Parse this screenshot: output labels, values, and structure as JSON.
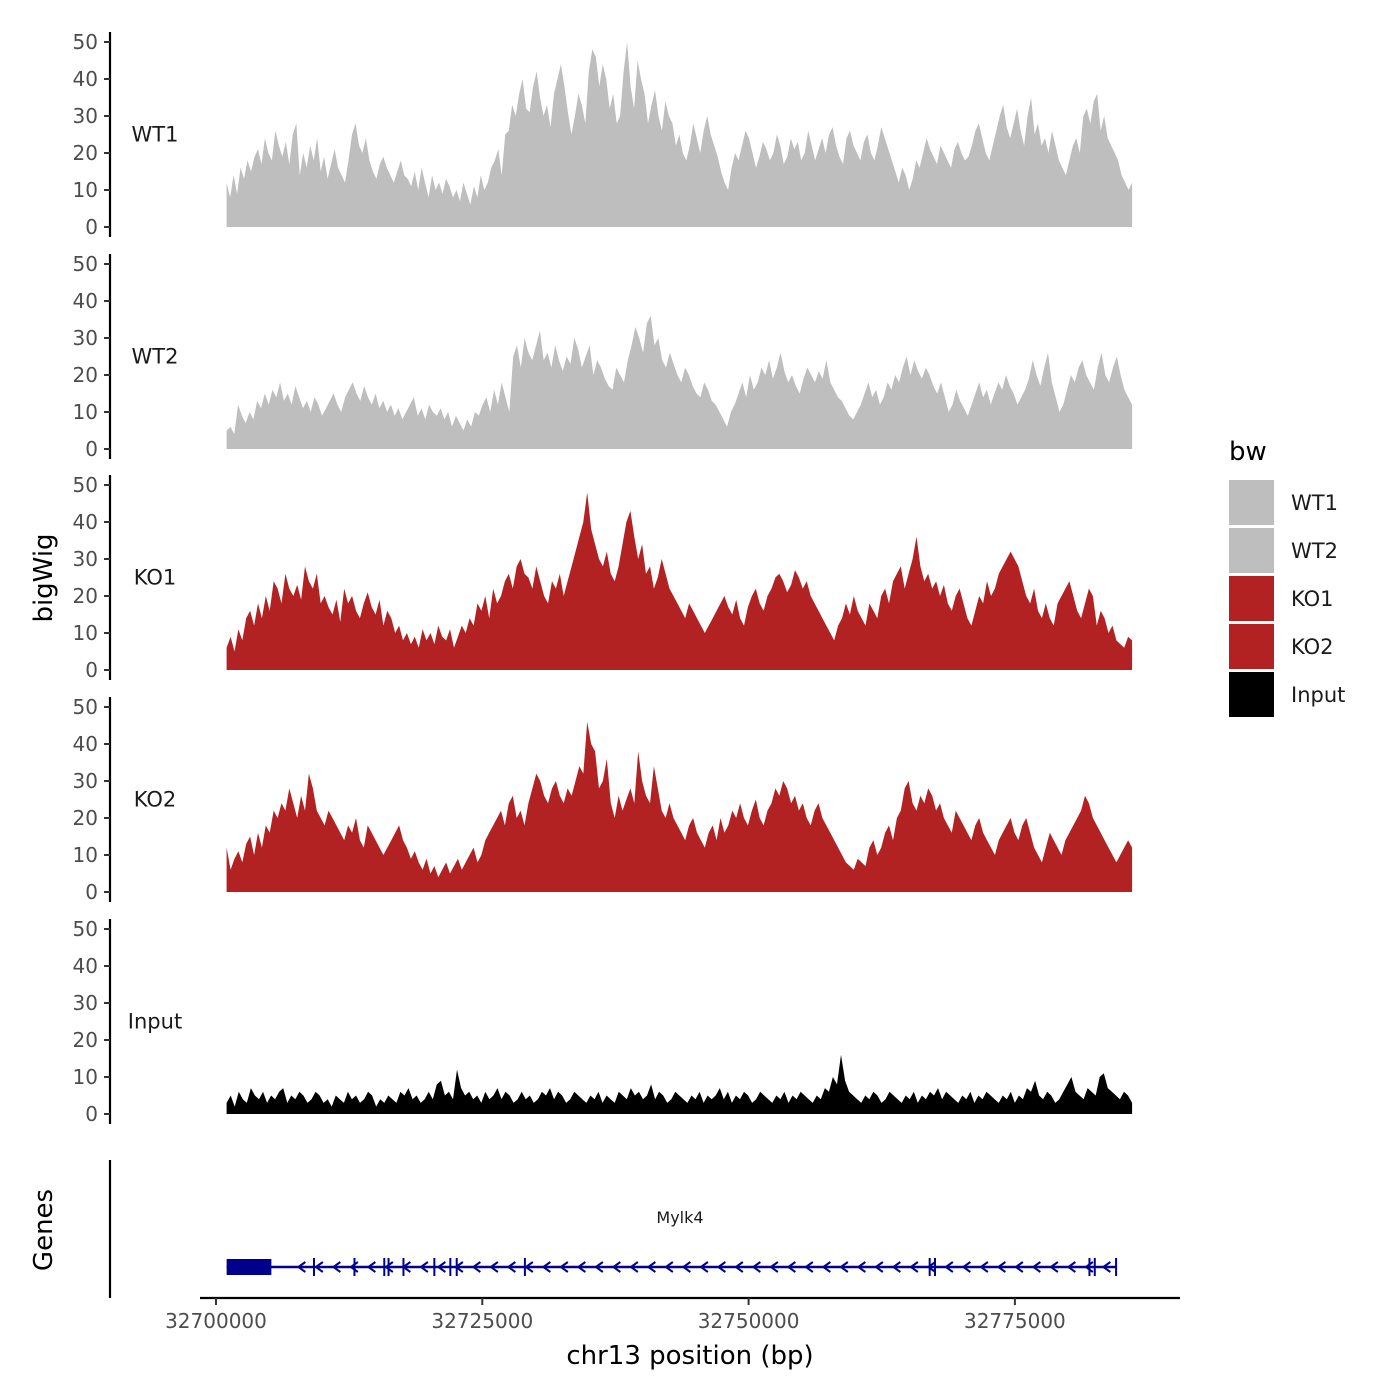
{
  "chart_data": {
    "type": "area",
    "ylabel": "bigWig",
    "genes_label": "Genes",
    "xlabel": "chr13 position (bp)",
    "chromosome": "chr13",
    "xlim": [
      32698500,
      32790500
    ],
    "data_range": [
      32701000,
      32786000
    ],
    "ylim": [
      0,
      52
    ],
    "yticks": [
      0,
      10,
      20,
      30,
      40,
      50
    ],
    "xticks": [
      32700000,
      32725000,
      32750000,
      32775000
    ],
    "xtick_labels": [
      "32700000",
      "32725000",
      "32750000",
      "32775000"
    ],
    "legend": {
      "title": "bw",
      "position": "right",
      "entries": [
        {
          "label": "WT1",
          "color": "#bebebe"
        },
        {
          "label": "WT2",
          "color": "#bebebe"
        },
        {
          "label": "KO1",
          "color": "#b22222"
        },
        {
          "label": "KO2",
          "color": "#b22222"
        },
        {
          "label": "Input",
          "color": "#000000"
        }
      ]
    },
    "series": [
      {
        "name": "WT1",
        "color": "#bebebe",
        "values": [
          12,
          8,
          14,
          9,
          16,
          13,
          18,
          15,
          19,
          21,
          17,
          24,
          20,
          18,
          26,
          22,
          19,
          23,
          17,
          25,
          28,
          14,
          20,
          16,
          22,
          18,
          24,
          15,
          19,
          13,
          17,
          21,
          16,
          14,
          12,
          18,
          25,
          28,
          22,
          20,
          24,
          18,
          15,
          13,
          17,
          19,
          16,
          14,
          12,
          15,
          18,
          14,
          13,
          11,
          15,
          10,
          16,
          12,
          8,
          14,
          10,
          12,
          9,
          13,
          11,
          8,
          10,
          7,
          12,
          9,
          6,
          11,
          8,
          14,
          10,
          12,
          16,
          18,
          21,
          14,
          25,
          26,
          33,
          30,
          36,
          40,
          32,
          31,
          38,
          42,
          35,
          30,
          33,
          27,
          36,
          40,
          44,
          38,
          31,
          25,
          30,
          36,
          33,
          28,
          42,
          48,
          46,
          38,
          44,
          40,
          32,
          36,
          28,
          30,
          42,
          50,
          38,
          32,
          45,
          40,
          36,
          28,
          33,
          37,
          30,
          26,
          34,
          30,
          28,
          22,
          25,
          20,
          18,
          22,
          28,
          24,
          20,
          26,
          30,
          25,
          22,
          19,
          15,
          12,
          10,
          16,
          20,
          18,
          22,
          26,
          24,
          20,
          16,
          19,
          23,
          21,
          18,
          20,
          25,
          22,
          17,
          19,
          24,
          21,
          23,
          18,
          20,
          26,
          22,
          18,
          21,
          24,
          20,
          25,
          27,
          22,
          19,
          17,
          24,
          26,
          22,
          20,
          18,
          23,
          25,
          20,
          18,
          22,
          27,
          24,
          21,
          18,
          15,
          12,
          16,
          14,
          10,
          13,
          18,
          16,
          20,
          24,
          21,
          19,
          17,
          22,
          20,
          18,
          16,
          21,
          23,
          20,
          18,
          19,
          22,
          26,
          28,
          24,
          20,
          18,
          22,
          26,
          30,
          33,
          27,
          24,
          28,
          32,
          26,
          22,
          30,
          35,
          25,
          28,
          22,
          24,
          20,
          26,
          22,
          18,
          16,
          14,
          18,
          22,
          24,
          20,
          30,
          32,
          28,
          34,
          36,
          26,
          30,
          24,
          22,
          20,
          18,
          14,
          12,
          10,
          12
        ]
      },
      {
        "name": "WT2",
        "color": "#bebebe",
        "values": [
          5,
          6,
          4,
          12,
          9,
          7,
          10,
          8,
          13,
          11,
          15,
          12,
          16,
          14,
          18,
          13,
          15,
          12,
          17,
          14,
          11,
          13,
          10,
          14,
          12,
          9,
          11,
          13,
          15,
          12,
          10,
          14,
          16,
          18,
          15,
          13,
          17,
          14,
          12,
          15,
          11,
          13,
          10,
          12,
          9,
          11,
          8,
          10,
          12,
          14,
          9,
          11,
          8,
          12,
          10,
          9,
          11,
          8,
          10,
          6,
          9,
          7,
          5,
          8,
          6,
          10,
          9,
          12,
          14,
          10,
          16,
          12,
          18,
          14,
          10,
          25,
          28,
          22,
          30,
          26,
          24,
          28,
          32,
          24,
          26,
          22,
          28,
          24,
          21,
          25,
          23,
          30,
          27,
          22,
          25,
          28,
          20,
          24,
          22,
          19,
          17,
          16,
          22,
          20,
          18,
          24,
          28,
          33,
          30,
          26,
          34,
          36,
          28,
          30,
          24,
          22,
          26,
          23,
          20,
          18,
          22,
          20,
          17,
          15,
          14,
          18,
          16,
          13,
          12,
          10,
          8,
          6,
          10,
          12,
          15,
          18,
          14,
          20,
          16,
          18,
          22,
          20,
          24,
          19,
          22,
          26,
          21,
          18,
          20,
          17,
          15,
          19,
          22,
          20,
          18,
          21,
          19,
          24,
          18,
          16,
          14,
          13,
          11,
          9,
          8,
          10,
          12,
          15,
          18,
          14,
          16,
          12,
          14,
          18,
          16,
          20,
          18,
          22,
          25,
          20,
          24,
          21,
          19,
          22,
          20,
          17,
          15,
          18,
          14,
          10,
          12,
          16,
          13,
          11,
          9,
          12,
          15,
          18,
          14,
          16,
          12,
          15,
          18,
          16,
          20,
          17,
          15,
          12,
          14,
          16,
          19,
          24,
          20,
          17,
          22,
          26,
          18,
          14,
          10,
          12,
          16,
          20,
          18,
          22,
          24,
          20,
          18,
          16,
          22,
          26,
          20,
          18,
          22,
          25,
          20,
          16,
          14,
          12
        ]
      },
      {
        "name": "KO1",
        "color": "#b22222",
        "values": [
          6,
          9,
          5,
          11,
          8,
          14,
          16,
          12,
          18,
          14,
          20,
          16,
          24,
          22,
          18,
          26,
          22,
          20,
          23,
          19,
          28,
          24,
          22,
          26,
          18,
          20,
          17,
          15,
          19,
          13,
          22,
          18,
          20,
          16,
          14,
          18,
          21,
          17,
          15,
          19,
          12,
          16,
          14,
          10,
          12,
          8,
          10,
          7,
          9,
          6,
          11,
          8,
          10,
          7,
          12,
          9,
          8,
          11,
          6,
          9,
          12,
          10,
          14,
          12,
          18,
          16,
          20,
          14,
          22,
          18,
          20,
          24,
          26,
          22,
          28,
          30,
          26,
          25,
          22,
          28,
          24,
          20,
          18,
          24,
          22,
          26,
          20,
          24,
          28,
          32,
          36,
          40,
          48,
          38,
          34,
          30,
          28,
          32,
          26,
          24,
          28,
          34,
          40,
          43,
          36,
          30,
          34,
          26,
          28,
          22,
          25,
          30,
          26,
          22,
          20,
          18,
          16,
          14,
          18,
          16,
          14,
          12,
          10,
          12,
          14,
          16,
          18,
          20,
          17,
          15,
          19,
          14,
          12,
          17,
          20,
          22,
          18,
          16,
          20,
          22,
          25,
          26,
          24,
          21,
          23,
          27,
          25,
          22,
          24,
          20,
          18,
          16,
          14,
          12,
          10,
          8,
          12,
          14,
          18,
          15,
          20,
          16,
          14,
          12,
          18,
          16,
          14,
          20,
          22,
          18,
          24,
          26,
          28,
          22,
          26,
          30,
          36,
          28,
          24,
          26,
          22,
          24,
          20,
          23,
          18,
          16,
          20,
          22,
          18,
          14,
          12,
          16,
          20,
          18,
          24,
          20,
          22,
          26,
          28,
          30,
          32,
          30,
          28,
          24,
          20,
          18,
          22,
          16,
          14,
          18,
          14,
          12,
          18,
          20,
          22,
          24,
          20,
          16,
          14,
          18,
          22,
          20,
          12,
          16,
          14,
          10,
          12,
          8,
          7,
          6,
          9,
          8
        ]
      },
      {
        "name": "KO2",
        "color": "#b22222",
        "values": [
          12,
          6,
          9,
          11,
          8,
          13,
          15,
          10,
          16,
          12,
          18,
          16,
          22,
          20,
          24,
          22,
          28,
          24,
          20,
          26,
          22,
          32,
          28,
          22,
          20,
          18,
          22,
          20,
          18,
          16,
          14,
          18,
          16,
          20,
          14,
          12,
          18,
          16,
          14,
          12,
          10,
          12,
          14,
          16,
          18,
          14,
          12,
          9,
          11,
          8,
          6,
          9,
          5,
          7,
          4,
          6,
          8,
          5,
          7,
          9,
          6,
          8,
          10,
          12,
          8,
          10,
          14,
          16,
          18,
          20,
          22,
          18,
          24,
          26,
          20,
          22,
          18,
          24,
          28,
          32,
          30,
          26,
          24,
          28,
          30,
          26,
          24,
          28,
          26,
          30,
          34,
          32,
          46,
          40,
          38,
          28,
          30,
          36,
          24,
          20,
          26,
          22,
          25,
          28,
          24,
          38,
          30,
          26,
          24,
          34,
          28,
          22,
          20,
          24,
          20,
          18,
          16,
          14,
          18,
          20,
          16,
          14,
          12,
          16,
          18,
          14,
          20,
          16,
          18,
          22,
          20,
          24,
          20,
          18,
          22,
          25,
          20,
          18,
          22,
          24,
          28,
          26,
          30,
          28,
          24,
          26,
          22,
          24,
          20,
          18,
          22,
          24,
          20,
          18,
          16,
          14,
          12,
          10,
          8,
          7,
          6,
          9,
          8,
          7,
          12,
          14,
          10,
          12,
          16,
          18,
          14,
          20,
          22,
          28,
          30,
          24,
          22,
          26,
          24,
          28,
          26,
          22,
          24,
          20,
          18,
          16,
          22,
          20,
          18,
          16,
          14,
          18,
          20,
          16,
          14,
          12,
          10,
          14,
          16,
          18,
          20,
          16,
          14,
          18,
          20,
          16,
          12,
          10,
          8,
          12,
          16,
          14,
          12,
          10,
          14,
          16,
          18,
          20,
          22,
          26,
          24,
          20,
          18,
          16,
          14,
          12,
          10,
          8,
          10,
          12,
          14,
          12
        ]
      },
      {
        "name": "Input",
        "color": "#000000",
        "values": [
          3,
          5,
          2,
          6,
          4,
          3,
          7,
          5,
          4,
          6,
          3,
          5,
          4,
          6,
          7,
          3,
          5,
          4,
          6,
          5,
          3,
          4,
          6,
          5,
          3,
          4,
          2,
          5,
          4,
          3,
          6,
          4,
          5,
          3,
          4,
          6,
          5,
          2,
          4,
          3,
          5,
          4,
          3,
          6,
          5,
          7,
          4,
          5,
          3,
          4,
          6,
          4,
          8,
          9,
          5,
          6,
          4,
          12,
          7,
          5,
          6,
          4,
          5,
          3,
          6,
          4,
          5,
          7,
          4,
          6,
          5,
          3,
          4,
          6,
          4,
          5,
          3,
          4,
          6,
          5,
          7,
          4,
          6,
          5,
          3,
          4,
          6,
          5,
          4,
          3,
          5,
          4,
          6,
          3,
          5,
          4,
          3,
          6,
          5,
          4,
          7,
          5,
          6,
          4,
          5,
          8,
          4,
          6,
          5,
          3,
          4,
          6,
          5,
          4,
          3,
          5,
          4,
          6,
          3,
          5,
          4,
          5,
          7,
          4,
          6,
          3,
          5,
          4,
          6,
          5,
          3,
          4,
          6,
          5,
          4,
          3,
          5,
          4,
          6,
          3,
          5,
          4,
          6,
          5,
          4,
          3,
          5,
          4,
          7,
          6,
          10,
          8,
          16,
          9,
          6,
          5,
          4,
          3,
          5,
          4,
          6,
          5,
          3,
          4,
          6,
          5,
          4,
          3,
          5,
          4,
          6,
          3,
          5,
          4,
          6,
          5,
          7,
          4,
          6,
          5,
          4,
          3,
          5,
          4,
          6,
          3,
          5,
          4,
          6,
          5,
          4,
          3,
          5,
          4,
          6,
          3,
          5,
          4,
          7,
          6,
          9,
          5,
          4,
          6,
          5,
          3,
          4,
          6,
          8,
          10,
          6,
          5,
          4,
          7,
          6,
          5,
          10,
          11,
          7,
          6,
          5,
          4,
          6,
          5,
          3
        ]
      }
    ],
    "gene": {
      "name": "Mylk4",
      "strand": "-",
      "start": 32701000,
      "end": 32784500,
      "thick_block": [
        32701000,
        32705200
      ],
      "exons": [
        32709200,
        32713000,
        32715800,
        32716200,
        32717600,
        32720500,
        32722000,
        32722600,
        32729000,
        32767000,
        32767500,
        32782000,
        32782500,
        32784500
      ]
    }
  }
}
